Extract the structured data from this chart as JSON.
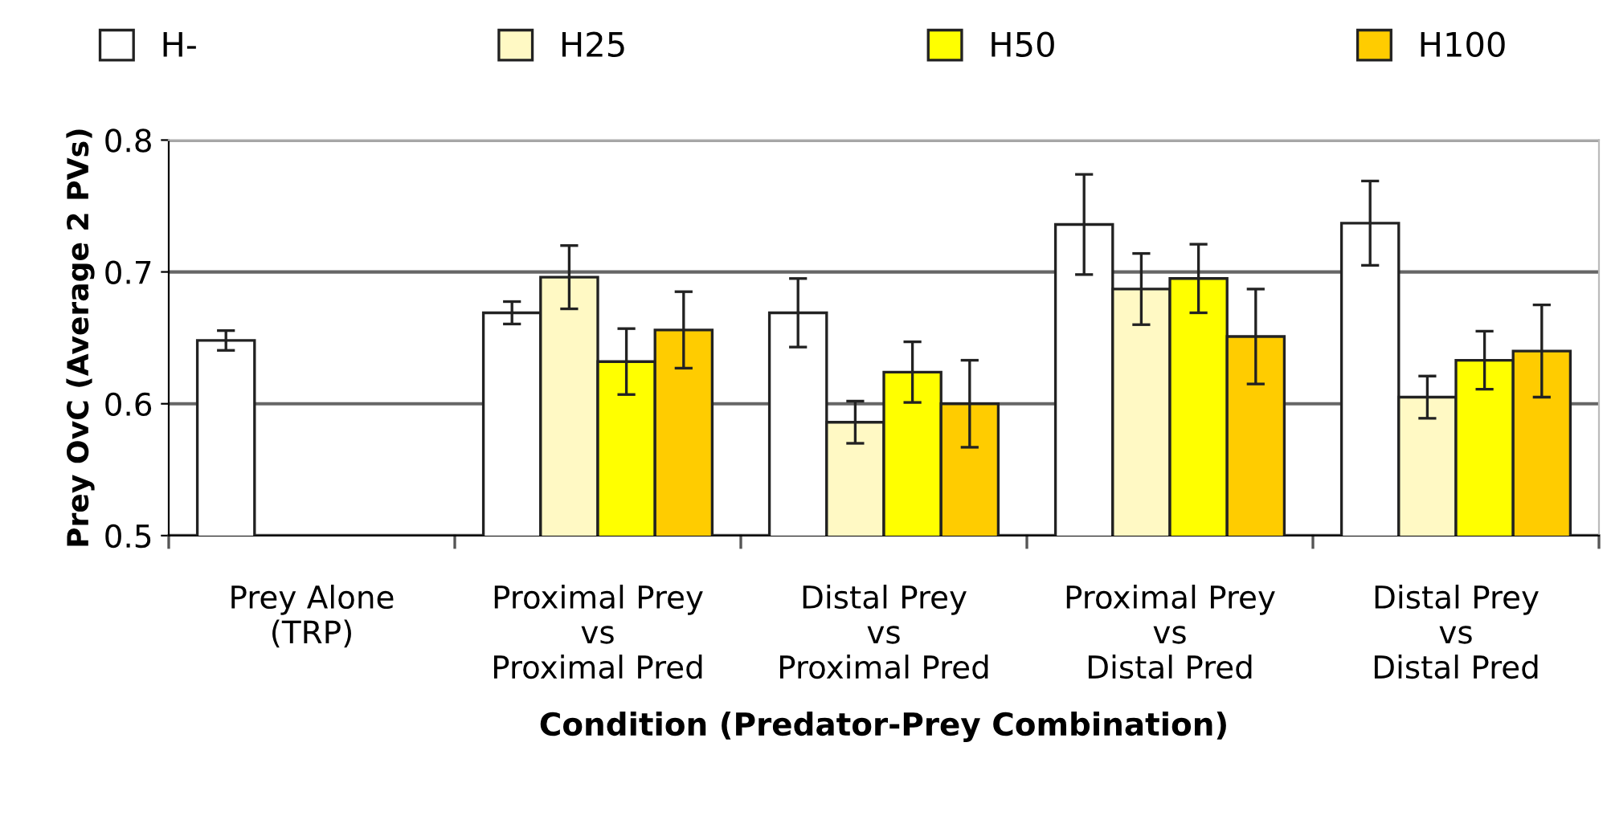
{
  "chart_data": {
    "type": "bar",
    "xlabel": "Condition (Predator-Prey Combination)",
    "ylabel": "Prey OvC (Average 2 PVs)",
    "categories": [
      "Prey Alone\n(TRP)",
      "Proximal Prey\nvs\nProximal Pred",
      "Distal Prey\nvs\nProximal Pred",
      "Proximal Prey\nvs\nDistal Pred",
      "Distal Prey\nvs\nDistal Pred"
    ],
    "series": [
      {
        "name": "H-",
        "color": "#ffffff",
        "values": [
          0.648,
          0.669,
          0.669,
          0.736,
          0.737
        ],
        "errors": [
          0.0075,
          0.0085,
          0.026,
          0.038,
          0.032
        ]
      },
      {
        "name": "H25",
        "color": "#fff9c4",
        "values": [
          null,
          0.696,
          0.586,
          0.687,
          0.605
        ],
        "errors": [
          null,
          0.024,
          0.016,
          0.027,
          0.016
        ]
      },
      {
        "name": "H50",
        "color": "#ffff00",
        "values": [
          null,
          0.632,
          0.624,
          0.695,
          0.633
        ],
        "errors": [
          null,
          0.025,
          0.023,
          0.026,
          0.022
        ]
      },
      {
        "name": "H100",
        "color": "#ffcc00",
        "values": [
          null,
          0.656,
          0.6,
          0.651,
          0.64
        ],
        "errors": [
          null,
          0.029,
          0.033,
          0.036,
          0.035
        ]
      }
    ],
    "ylim": [
      0.5,
      0.8
    ],
    "yticks": [
      0.5,
      0.6,
      0.7,
      0.8
    ],
    "grid": "y",
    "legend": "top"
  }
}
